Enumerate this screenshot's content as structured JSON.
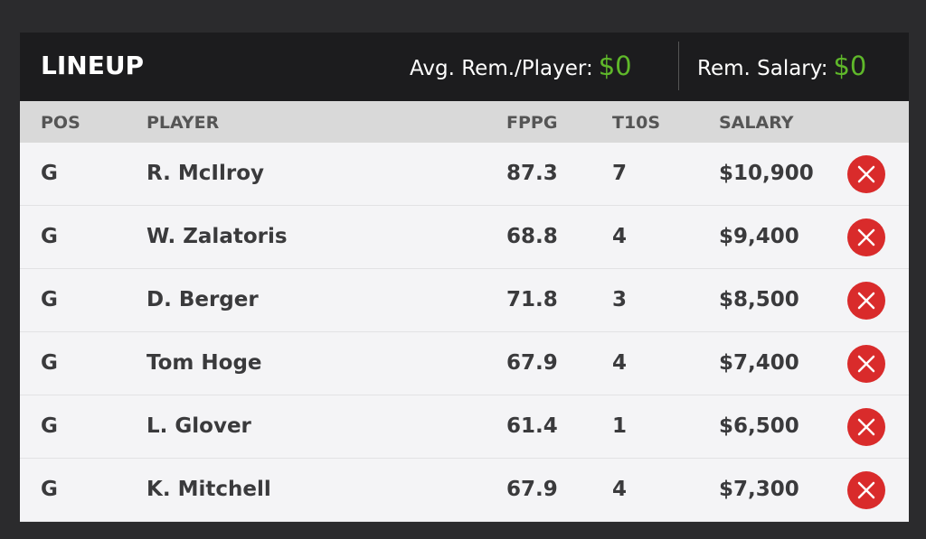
{
  "header": {
    "title": "LINEUP",
    "avg_label": "Avg. Rem./Player:",
    "avg_value": "$0",
    "salary_label": "Rem. Salary:",
    "salary_value": "$0"
  },
  "table": {
    "columns": [
      "POS",
      "PLAYER",
      "FPPG",
      "T10S",
      "SALARY"
    ],
    "rows": [
      [
        "G",
        "R. McIlroy",
        87.3,
        7,
        "$10,900"
      ],
      [
        "G",
        "W. Zalatoris",
        68.8,
        4,
        "$9,400"
      ],
      [
        "G",
        "D. Berger",
        71.8,
        3,
        "$8,500"
      ],
      [
        "G",
        "Tom Hoge",
        67.9,
        4,
        "$7,400"
      ],
      [
        "G",
        "L. Glover",
        61.4,
        1,
        "$6,500"
      ],
      [
        "G",
        "K. Mitchell",
        67.9,
        4,
        "$7,300"
      ]
    ]
  }
}
